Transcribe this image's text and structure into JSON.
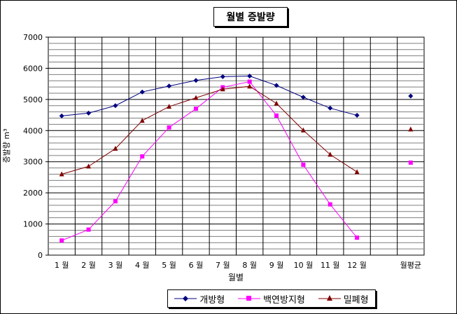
{
  "chart_data": {
    "type": "line",
    "title": "월별 증발량",
    "xlabel": "월별",
    "ylabel": "증발량 m³",
    "ylim": [
      0,
      7000
    ],
    "yticks": [
      0,
      1000,
      2000,
      3000,
      4000,
      5000,
      6000,
      7000
    ],
    "categories": [
      "1 월",
      "2 월",
      "3 월",
      "4 월",
      "5 월",
      "6 월",
      "7 월",
      "8 월",
      "9 월",
      "10 월",
      "11 월",
      "12 월",
      "",
      "월평균"
    ],
    "grid": true,
    "legend_position": "bottom",
    "series": [
      {
        "name": "개방형",
        "color": "#000080",
        "marker": "diamond",
        "values": [
          4470,
          4560,
          4800,
          5240,
          5430,
          5610,
          5730,
          5750,
          5450,
          5070,
          4720,
          4490,
          null,
          5110
        ]
      },
      {
        "name": "백연방지형",
        "color": "#ff00ff",
        "marker": "square",
        "values": [
          470,
          820,
          1730,
          3170,
          4100,
          4700,
          5390,
          5570,
          4480,
          2900,
          1630,
          560,
          null,
          2970
        ]
      },
      {
        "name": "밀폐형",
        "color": "#800000",
        "marker": "triangle",
        "values": [
          2600,
          2850,
          3420,
          4320,
          4770,
          5050,
          5330,
          5420,
          4870,
          4010,
          3230,
          2670,
          null,
          4040
        ]
      }
    ]
  }
}
